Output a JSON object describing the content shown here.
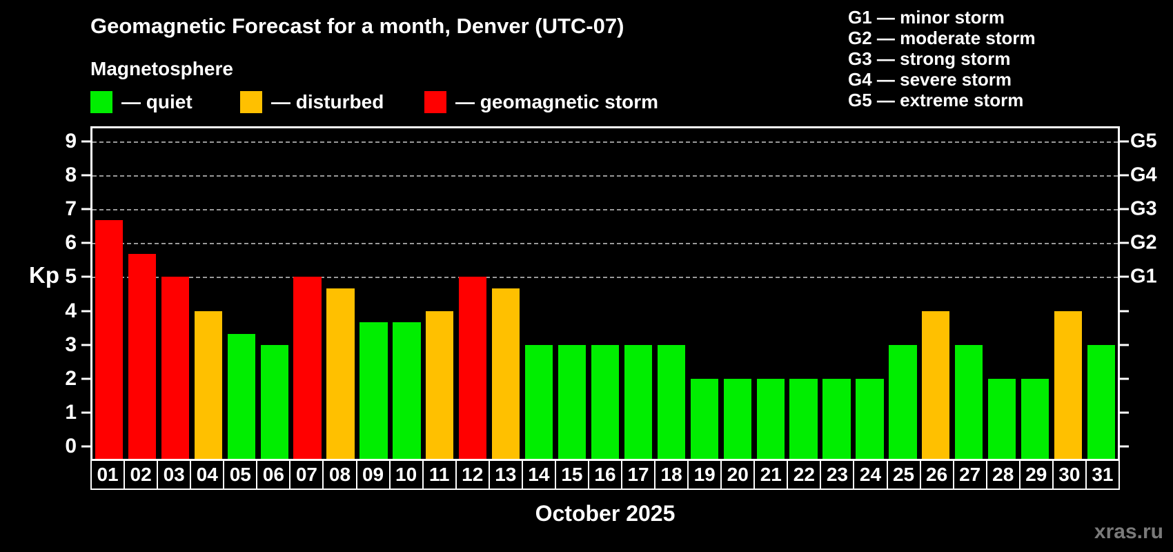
{
  "title": "Geomagnetic Forecast for a month, Denver (UTC-07)",
  "subtitle": "Magnetosphere",
  "legend": [
    {
      "key": "quiet",
      "label": "— quiet",
      "color": "#00ee00"
    },
    {
      "key": "disturbed",
      "label": "— disturbed",
      "color": "#ffc000"
    },
    {
      "key": "storm",
      "label": "— geomagnetic storm",
      "color": "#ff0000"
    }
  ],
  "storm_legend": [
    "G1 — minor storm",
    "G2 — moderate storm",
    "G3 — strong storm",
    "G4 — severe storm",
    "G5 — extreme storm"
  ],
  "y_axis": {
    "label": "Kp",
    "ticks": [
      0,
      1,
      2,
      3,
      4,
      5,
      6,
      7,
      8,
      9
    ]
  },
  "right_axis": {
    "labels": [
      {
        "text": "G1",
        "value": 5
      },
      {
        "text": "G2",
        "value": 6
      },
      {
        "text": "G3",
        "value": 7
      },
      {
        "text": "G4",
        "value": 8
      },
      {
        "text": "G5",
        "value": 9
      }
    ]
  },
  "x_axis": {
    "label": "October 2025"
  },
  "watermark": "xras.ru",
  "chart_data": {
    "type": "bar",
    "title": "Geomagnetic Forecast for a month, Denver (UTC-07)",
    "xlabel": "October 2025",
    "ylabel": "Kp",
    "ylim": [
      -0.36,
      9.38
    ],
    "grid_values": [
      5,
      6,
      7,
      8,
      9
    ],
    "categories": [
      "01",
      "02",
      "03",
      "04",
      "05",
      "06",
      "07",
      "08",
      "09",
      "10",
      "11",
      "12",
      "13",
      "14",
      "15",
      "16",
      "17",
      "18",
      "19",
      "20",
      "21",
      "22",
      "23",
      "24",
      "25",
      "26",
      "27",
      "28",
      "29",
      "30",
      "31"
    ],
    "values": [
      6.67,
      5.67,
      5,
      4,
      3.33,
      3,
      5,
      4.67,
      3.67,
      3.67,
      4,
      5,
      4.67,
      3,
      3,
      3,
      3,
      3,
      2,
      2,
      2,
      2,
      2,
      2,
      3,
      4,
      3,
      2,
      2,
      4,
      3
    ],
    "statuses": [
      "storm",
      "storm",
      "storm",
      "disturbed",
      "quiet",
      "quiet",
      "storm",
      "disturbed",
      "quiet",
      "quiet",
      "disturbed",
      "storm",
      "disturbed",
      "quiet",
      "quiet",
      "quiet",
      "quiet",
      "quiet",
      "quiet",
      "quiet",
      "quiet",
      "quiet",
      "quiet",
      "quiet",
      "quiet",
      "disturbed",
      "quiet",
      "quiet",
      "quiet",
      "disturbed",
      "quiet"
    ],
    "status_colors": {
      "quiet": "#00ee00",
      "disturbed": "#ffc000",
      "storm": "#ff0000"
    },
    "legend_position": "top-left",
    "grid": "dashed horizontal at G-levels only"
  }
}
